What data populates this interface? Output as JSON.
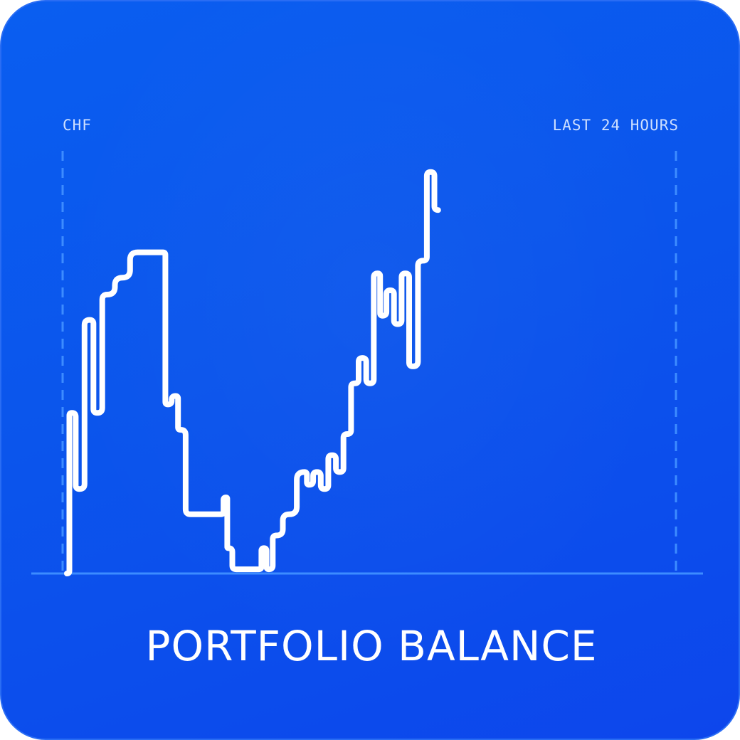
{
  "card": {
    "title": "PORTFOLIO BALANCE"
  },
  "colors": {
    "background_top": "#0a5ef0",
    "background_bottom": "#0d46ec",
    "line": "#ffffff",
    "guide": "#3d8cff",
    "label": "#cfe0ff"
  },
  "chart_data": {
    "type": "line",
    "title": "PORTFOLIO BALANCE",
    "currency_label": "CHF",
    "range_label": "LAST 24 HOURS",
    "xlabel": "",
    "ylabel": "",
    "xlim": [
      0,
      24
    ],
    "ylim": [
      0,
      100
    ],
    "grid": false,
    "legend": "none",
    "series": [
      {
        "values": [
          [
            0.0,
            0
          ],
          [
            0.2,
            38
          ],
          [
            0.5,
            20
          ],
          [
            0.9,
            60
          ],
          [
            1.2,
            38
          ],
          [
            1.6,
            66
          ],
          [
            2.2,
            70
          ],
          [
            2.8,
            76
          ],
          [
            3.8,
            76
          ],
          [
            4.0,
            40
          ],
          [
            4.3,
            42
          ],
          [
            4.5,
            34
          ],
          [
            4.9,
            14
          ],
          [
            6.1,
            14
          ],
          [
            6.3,
            18
          ],
          [
            6.4,
            6
          ],
          [
            6.7,
            1
          ],
          [
            7.6,
            1
          ],
          [
            7.8,
            6
          ],
          [
            8.0,
            1
          ],
          [
            8.3,
            9
          ],
          [
            8.8,
            14
          ],
          [
            9.4,
            24
          ],
          [
            9.6,
            21
          ],
          [
            9.9,
            24
          ],
          [
            10.2,
            20
          ],
          [
            10.5,
            28
          ],
          [
            10.8,
            24
          ],
          [
            11.1,
            33
          ],
          [
            11.4,
            45
          ],
          [
            11.7,
            51
          ],
          [
            12.0,
            45
          ],
          [
            12.3,
            71
          ],
          [
            12.5,
            61
          ],
          [
            12.8,
            67
          ],
          [
            13.1,
            59
          ],
          [
            13.4,
            71
          ],
          [
            13.7,
            49
          ],
          [
            14.1,
            74
          ],
          [
            14.4,
            95
          ],
          [
            14.7,
            86
          ]
        ]
      }
    ]
  }
}
